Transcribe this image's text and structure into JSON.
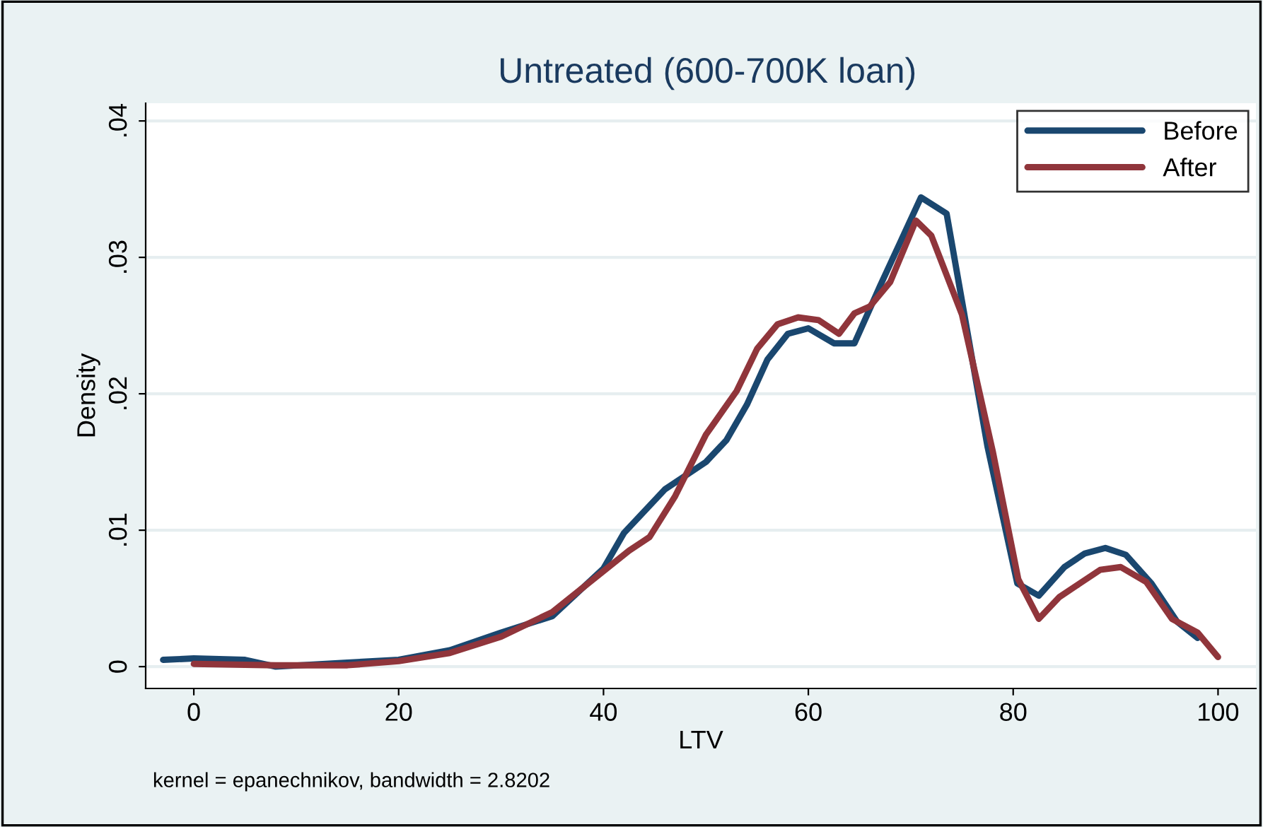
{
  "chart_data": {
    "type": "line",
    "title": "Untreated (600-700K loan)",
    "xlabel": "LTV",
    "ylabel": "Density",
    "series": [
      {
        "name": "Before",
        "color": "#1a476f",
        "x": [
          -3,
          0,
          5,
          8,
          15,
          20,
          25,
          30,
          35,
          40,
          42,
          46,
          50,
          52,
          54,
          56,
          58,
          60,
          62.5,
          64.5,
          67,
          71,
          73.5,
          75,
          77.5,
          80.4,
          82.5,
          85,
          87,
          89,
          91,
          93.5,
          96,
          98
        ],
        "values": [
          0.0005,
          0.0006,
          0.0005,
          0.0,
          0.0003,
          0.0005,
          0.0012,
          0.0025,
          0.0037,
          0.0072,
          0.0098,
          0.013,
          0.015,
          0.0166,
          0.0192,
          0.0225,
          0.0244,
          0.0248,
          0.0237,
          0.0237,
          0.0279,
          0.0344,
          0.0332,
          0.0268,
          0.0161,
          0.0061,
          0.0052,
          0.0073,
          0.0083,
          0.0087,
          0.0082,
          0.0061,
          0.0033,
          0.0021
        ]
      },
      {
        "name": "After",
        "color": "#90353b",
        "x": [
          0,
          8,
          15,
          20,
          25,
          30,
          35,
          40,
          42.5,
          44.5,
          47,
          50,
          53,
          55,
          57,
          59,
          61,
          63,
          64.5,
          66,
          68,
          70.5,
          72,
          75,
          78,
          80.5,
          82.5,
          84.5,
          86.5,
          88.5,
          90.5,
          93,
          95.5,
          98,
          100
        ],
        "values": [
          0.0002,
          0.0001,
          0.0001,
          0.0004,
          0.001,
          0.0022,
          0.004,
          0.007,
          0.0085,
          0.0095,
          0.0125,
          0.017,
          0.0202,
          0.0233,
          0.0251,
          0.0256,
          0.0254,
          0.0244,
          0.0259,
          0.0264,
          0.0282,
          0.0327,
          0.0316,
          0.0258,
          0.0158,
          0.0064,
          0.0035,
          0.0051,
          0.0061,
          0.0071,
          0.0073,
          0.0062,
          0.0035,
          0.0025,
          0.0007
        ]
      }
    ],
    "xlim": [
      -4.7,
      103.7
    ],
    "xticks": [
      0,
      20,
      40,
      60,
      80,
      100
    ],
    "ylim": [
      -0.0016,
      0.0413
    ],
    "yticks": [
      {
        "value": 0,
        "label": "0"
      },
      {
        "value": 0.01,
        "label": ".01"
      },
      {
        "value": 0.02,
        "label": ".02"
      },
      {
        "value": 0.03,
        "label": ".03"
      },
      {
        "value": 0.04,
        "label": ".04"
      }
    ],
    "grid": "y",
    "legend": "top right",
    "line_style": "solid",
    "marker": "none",
    "annotations": [
      "kernel = epanechnikov, bandwidth = 2.8202"
    ]
  }
}
